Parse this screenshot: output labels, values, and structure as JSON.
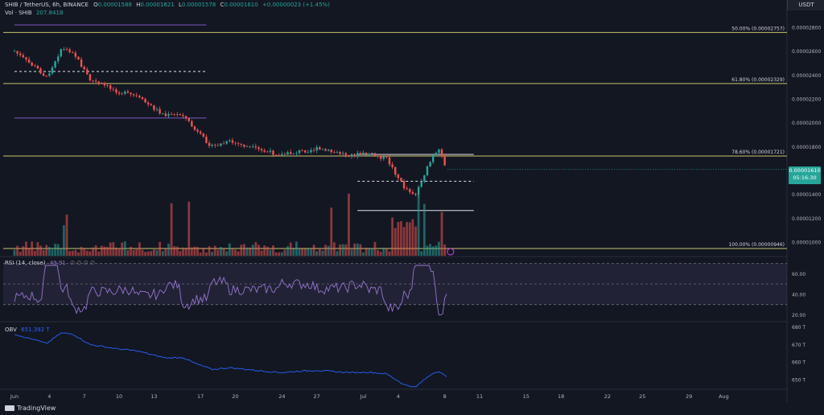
{
  "header": {
    "symbol": "SHIB / TetherUS, 6h, BINANCE",
    "ohlc_labels": [
      "O",
      "H",
      "L",
      "C"
    ],
    "ohlc_values": [
      "0.00001588",
      "0.00001621",
      "0.00001578",
      "0.00001610"
    ],
    "change": "+0.00000023 (+1.45%)",
    "volume_label": "Vol · SHIB",
    "volume_value": "207.841B"
  },
  "currency": "USDT",
  "last_price": {
    "value": "0.00001610",
    "countdown": "05:16:30"
  },
  "fib_levels": [
    {
      "label": "50.00% (0.00002757)",
      "price": 2.757e-05
    },
    {
      "label": "61.80% (0.00002329)",
      "price": 2.329e-05
    },
    {
      "label": "78.60% (0.00001721)",
      "price": 1.721e-05
    },
    {
      "label": "100.00% (0.00000946)",
      "price": 9.46e-06
    }
  ],
  "rsi_panel": {
    "label": "RSI (14, close)",
    "value": "49.91",
    "extra": "∅ ∅ ∅ ∅",
    "ticks": [
      "60.00",
      "40.00",
      "20.00"
    ]
  },
  "obv_panel": {
    "label": "OBV",
    "value": "651.392 T",
    "ticks": [
      "680 T",
      "670 T",
      "660 T",
      "650 T"
    ]
  },
  "brand": "TradingView",
  "colors": {
    "up": "#26a69a",
    "down": "#ef5350",
    "fib": "#c8c36a",
    "purple": "#7e57c2",
    "rsi": "#9575cd",
    "obv": "#2962ff",
    "background": "#131722"
  },
  "chart_data": {
    "type": "candlestick",
    "title": "SHIB / TetherUS, 6h, BINANCE",
    "price_axis": {
      "ticks": [
        "0.00002800",
        "0.00002600",
        "0.00002400",
        "0.00002200",
        "0.00002000",
        "0.00001800",
        "0.00001400",
        "0.00001200",
        "0.00001000"
      ],
      "range": [
        9.2e-06,
        2.9e-05
      ]
    },
    "x_axis": {
      "ticks": [
        "Jun",
        "4",
        "7",
        "10",
        "13",
        "17",
        "20",
        "24",
        "27",
        "Jul",
        "4",
        "8",
        "11",
        "15",
        "18",
        "22",
        "25",
        "29",
        "Aug"
      ]
    },
    "series": [
      {
        "name": "Vol · SHIB",
        "type": "bar"
      },
      {
        "name": "RSI (14, close)",
        "type": "line",
        "range": [
          15,
          75
        ]
      },
      {
        "name": "OBV",
        "type": "line",
        "range": [
          645,
          682
        ]
      }
    ],
    "close_path": [
      [
        "2022-06-01T00:00",
        2.6e-05
      ],
      [
        "2022-06-02T00:00",
        2.52e-05
      ],
      [
        "2022-06-03T00:00",
        2.45e-05
      ],
      [
        "2022-06-03T18:00",
        2.38e-05
      ],
      [
        "2022-06-05T00:00",
        2.62e-05
      ],
      [
        "2022-06-06T00:00",
        2.6e-05
      ],
      [
        "2022-06-06T18:00",
        2.48e-05
      ],
      [
        "2022-06-07T12:00",
        2.36e-05
      ],
      [
        "2022-06-08T12:00",
        2.32e-05
      ],
      [
        "2022-06-10T00:00",
        2.26e-05
      ],
      [
        "2022-06-11T12:00",
        2.22e-05
      ],
      [
        "2022-06-13T00:00",
        2.12e-05
      ],
      [
        "2022-06-14T00:00",
        2.06e-05
      ],
      [
        "2022-06-15T12:00",
        2.07e-05
      ],
      [
        "2022-06-16T12:00",
        1.94e-05
      ],
      [
        "2022-06-18T00:00",
        1.8e-05
      ],
      [
        "2022-06-19T12:00",
        1.84e-05
      ],
      [
        "2022-06-21T00:00",
        1.8e-05
      ],
      [
        "2022-06-22T12:00",
        1.76e-05
      ],
      [
        "2022-06-24T00:00",
        1.73e-05
      ],
      [
        "2022-06-25T12:00",
        1.76e-05
      ],
      [
        "2022-06-27T00:00",
        1.78e-05
      ],
      [
        "2022-06-28T12:00",
        1.75e-05
      ],
      [
        "2022-06-30T00:00",
        1.73e-05
      ],
      [
        "2022-07-01T12:00",
        1.74e-05
      ],
      [
        "2022-07-03T00:00",
        1.7e-05
      ],
      [
        "2022-07-04T12:00",
        1.46e-05
      ],
      [
        "2022-07-05T12:00",
        1.4e-05
      ],
      [
        "2022-07-06T00:00",
        1.52e-05
      ],
      [
        "2022-07-07T00:00",
        1.72e-05
      ],
      [
        "2022-07-07T12:00",
        1.76e-05
      ],
      [
        "2022-07-08T06:00",
        1.61e-05
      ]
    ]
  },
  "chart_annotations": {
    "horizontal_rays": [
      {
        "style": "solid",
        "color": "purple",
        "price": 2.82e-05,
        "from": "2022-06-01T00:00",
        "to": "2022-06-17T12:00"
      },
      {
        "style": "dashed",
        "color": "white",
        "price": 2.43e-05,
        "from": "2022-06-01T00:00",
        "to": "2022-06-17T12:00"
      },
      {
        "style": "solid",
        "color": "purple",
        "price": 2.04e-05,
        "from": "2022-06-01T00:00",
        "to": "2022-06-17T12:00"
      },
      {
        "style": "solid",
        "color": "white",
        "price": 1.735e-05,
        "from": "2022-06-30T12:00",
        "to": "2022-07-10T12:00"
      },
      {
        "style": "dashed",
        "color": "white",
        "price": 1.51e-05,
        "from": "2022-06-30T12:00",
        "to": "2022-07-10T12:00"
      },
      {
        "style": "solid",
        "color": "white",
        "price": 1.265e-05,
        "from": "2022-06-30T12:00",
        "to": "2022-07-10T12:00"
      }
    ]
  }
}
